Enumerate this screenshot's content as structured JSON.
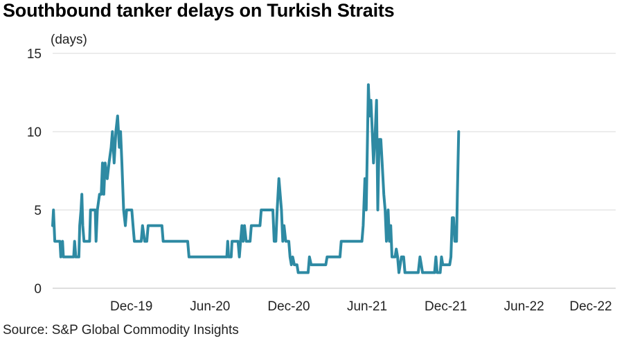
{
  "title": "Southbound tanker delays on Turkish Straits",
  "source": "Source: S&P Global Commodity Insights",
  "chart_data": {
    "type": "line",
    "title": "Southbound tanker delays on Turkish Straits",
    "ylabel": "(days)",
    "xlabel": "",
    "ylim": [
      0,
      15
    ],
    "yticks": [
      0,
      5,
      10,
      15
    ],
    "xlim": [
      "2019-06-01",
      "2022-12-31"
    ],
    "xticks": [
      {
        "date": "2019-12-01",
        "label": "Dec-19"
      },
      {
        "date": "2020-06-01",
        "label": "Jun-20"
      },
      {
        "date": "2020-12-01",
        "label": "Dec-20"
      },
      {
        "date": "2021-06-01",
        "label": "Jun-21"
      },
      {
        "date": "2021-12-01",
        "label": "Dec-21"
      },
      {
        "date": "2022-06-01",
        "label": "Jun-22"
      },
      {
        "date": "2022-12-01",
        "label": "Dec-22"
      }
    ],
    "grid": true,
    "line_color": "#2e8aa3",
    "series": [
      {
        "name": "",
        "points": [
          [
            "2019-06-01",
            4
          ],
          [
            "2019-06-03",
            5
          ],
          [
            "2019-06-06",
            3
          ],
          [
            "2019-06-18",
            3
          ],
          [
            "2019-06-20",
            2
          ],
          [
            "2019-06-24",
            3
          ],
          [
            "2019-06-26",
            2
          ],
          [
            "2019-07-20",
            2
          ],
          [
            "2019-07-22",
            3
          ],
          [
            "2019-07-25",
            2
          ],
          [
            "2019-08-01",
            2
          ],
          [
            "2019-08-03",
            4
          ],
          [
            "2019-08-06",
            5
          ],
          [
            "2019-08-08",
            6
          ],
          [
            "2019-08-10",
            4
          ],
          [
            "2019-08-13",
            3
          ],
          [
            "2019-08-26",
            3
          ],
          [
            "2019-08-28",
            5
          ],
          [
            "2019-09-08",
            5
          ],
          [
            "2019-09-10",
            3
          ],
          [
            "2019-09-13",
            5
          ],
          [
            "2019-09-18",
            6
          ],
          [
            "2019-09-22",
            6
          ],
          [
            "2019-09-25",
            8
          ],
          [
            "2019-09-28",
            6
          ],
          [
            "2019-10-01",
            8
          ],
          [
            "2019-10-06",
            7
          ],
          [
            "2019-10-10",
            8
          ],
          [
            "2019-10-15",
            9
          ],
          [
            "2019-10-18",
            10
          ],
          [
            "2019-10-22",
            8
          ],
          [
            "2019-10-26",
            10
          ],
          [
            "2019-10-30",
            11
          ],
          [
            "2019-11-03",
            9
          ],
          [
            "2019-11-06",
            10
          ],
          [
            "2019-11-09",
            8
          ],
          [
            "2019-11-13",
            5
          ],
          [
            "2019-11-17",
            4
          ],
          [
            "2019-11-20",
            5
          ],
          [
            "2019-12-02",
            5
          ],
          [
            "2019-12-05",
            4
          ],
          [
            "2019-12-08",
            3
          ],
          [
            "2019-12-24",
            3
          ],
          [
            "2019-12-27",
            4
          ],
          [
            "2020-01-01",
            3
          ],
          [
            "2020-01-06",
            3
          ],
          [
            "2020-01-09",
            4
          ],
          [
            "2020-02-10",
            4
          ],
          [
            "2020-02-13",
            3
          ],
          [
            "2020-04-10",
            3
          ],
          [
            "2020-04-13",
            2
          ],
          [
            "2020-06-01",
            2
          ],
          [
            "2020-07-10",
            2
          ],
          [
            "2020-07-12",
            3
          ],
          [
            "2020-07-14",
            2
          ],
          [
            "2020-07-20",
            2
          ],
          [
            "2020-07-22",
            3
          ],
          [
            "2020-08-05",
            3
          ],
          [
            "2020-08-08",
            2
          ],
          [
            "2020-08-11",
            3
          ],
          [
            "2020-08-14",
            4
          ],
          [
            "2020-08-17",
            3
          ],
          [
            "2020-08-20",
            4
          ],
          [
            "2020-08-24",
            3
          ],
          [
            "2020-09-02",
            3
          ],
          [
            "2020-09-05",
            4
          ],
          [
            "2020-09-25",
            4
          ],
          [
            "2020-09-28",
            5
          ],
          [
            "2020-10-25",
            5
          ],
          [
            "2020-10-28",
            3
          ],
          [
            "2020-11-01",
            3
          ],
          [
            "2020-11-04",
            5
          ],
          [
            "2020-11-08",
            7
          ],
          [
            "2020-11-14",
            5
          ],
          [
            "2020-11-17",
            3
          ],
          [
            "2020-11-20",
            4
          ],
          [
            "2020-11-24",
            3
          ],
          [
            "2020-12-01",
            3
          ],
          [
            "2020-12-04",
            2
          ],
          [
            "2020-12-07",
            1.5
          ],
          [
            "2020-12-10",
            2
          ],
          [
            "2020-12-14",
            1.5
          ],
          [
            "2020-12-20",
            1.5
          ],
          [
            "2020-12-23",
            1
          ],
          [
            "2021-01-15",
            1
          ],
          [
            "2021-01-18",
            2
          ],
          [
            "2021-01-22",
            1.5
          ],
          [
            "2021-02-25",
            1.5
          ],
          [
            "2021-02-28",
            2
          ],
          [
            "2021-03-30",
            2
          ],
          [
            "2021-04-02",
            3
          ],
          [
            "2021-05-20",
            3
          ],
          [
            "2021-05-23",
            4
          ],
          [
            "2021-05-27",
            7
          ],
          [
            "2021-05-30",
            5
          ],
          [
            "2021-06-01",
            8
          ],
          [
            "2021-06-04",
            13
          ],
          [
            "2021-06-07",
            11
          ],
          [
            "2021-06-10",
            12
          ],
          [
            "2021-06-13",
            10
          ],
          [
            "2021-06-16",
            8
          ],
          [
            "2021-06-20",
            10
          ],
          [
            "2021-06-23",
            12
          ],
          [
            "2021-06-26",
            5
          ],
          [
            "2021-06-29",
            9.5
          ],
          [
            "2021-07-03",
            9.5
          ],
          [
            "2021-07-06",
            8
          ],
          [
            "2021-07-10",
            6
          ],
          [
            "2021-07-13",
            5
          ],
          [
            "2021-07-16",
            3
          ],
          [
            "2021-07-20",
            5
          ],
          [
            "2021-07-23",
            3
          ],
          [
            "2021-07-26",
            4
          ],
          [
            "2021-07-29",
            2
          ],
          [
            "2021-08-05",
            2
          ],
          [
            "2021-08-08",
            2.5
          ],
          [
            "2021-08-11",
            2
          ],
          [
            "2021-08-14",
            1
          ],
          [
            "2021-08-20",
            2
          ],
          [
            "2021-08-25",
            2
          ],
          [
            "2021-08-28",
            1
          ],
          [
            "2021-09-25",
            1
          ],
          [
            "2021-09-28",
            1
          ],
          [
            "2021-10-02",
            2
          ],
          [
            "2021-10-05",
            1.5
          ],
          [
            "2021-10-08",
            1
          ],
          [
            "2021-11-05",
            1
          ],
          [
            "2021-11-08",
            2
          ],
          [
            "2021-11-11",
            1
          ],
          [
            "2021-11-18",
            1
          ],
          [
            "2021-11-21",
            2
          ],
          [
            "2021-11-24",
            1.5
          ],
          [
            "2021-12-10",
            1.5
          ],
          [
            "2021-12-13",
            2
          ],
          [
            "2021-12-16",
            4.5
          ],
          [
            "2021-12-19",
            4.5
          ],
          [
            "2021-12-22",
            3
          ],
          [
            "2021-12-26",
            3
          ],
          [
            "2021-12-28",
            6
          ],
          [
            "2021-12-31",
            10
          ]
        ]
      }
    ]
  }
}
